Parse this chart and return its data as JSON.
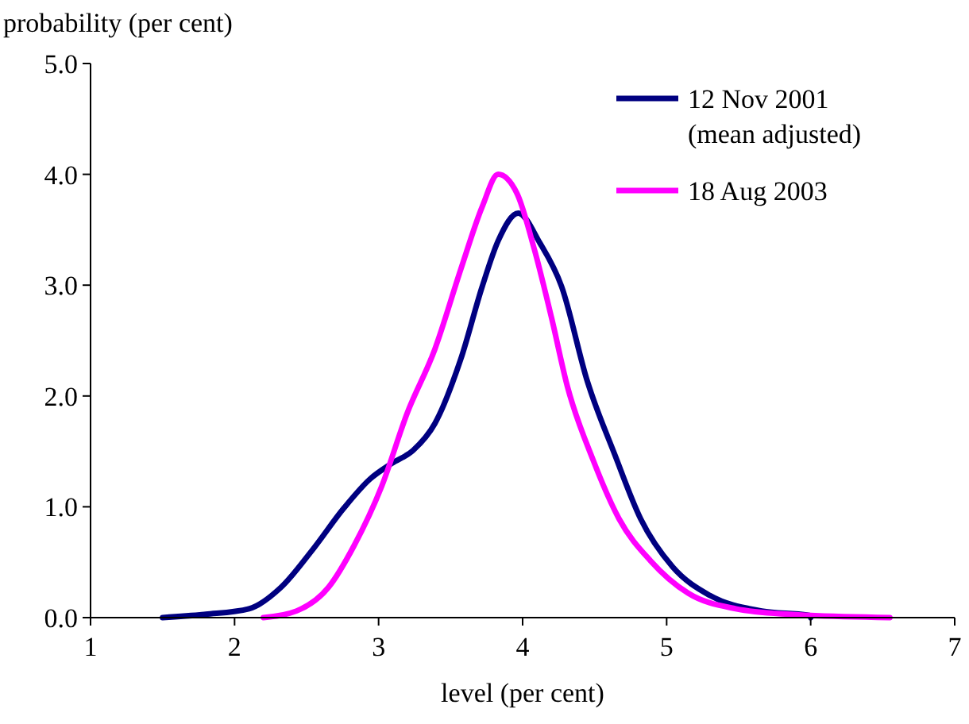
{
  "chart_data": {
    "type": "line",
    "ylabel": "probability (per cent)",
    "xlabel": "level (per cent)",
    "xlim": [
      1,
      7
    ],
    "xticks": [
      1,
      2,
      3,
      4,
      5,
      6,
      7
    ],
    "ylim": [
      0,
      5
    ],
    "yticks": [
      {
        "value": 0,
        "label": "0.0"
      },
      {
        "value": 1,
        "label": "1.0"
      },
      {
        "value": 2,
        "label": "2.0"
      },
      {
        "value": 3,
        "label": "3.0"
      },
      {
        "value": 4,
        "label": "4.0"
      },
      {
        "value": 5,
        "label": "5.0"
      }
    ],
    "grid": false,
    "legend": "top right",
    "marker": "none",
    "line_style": "solid",
    "series": [
      {
        "name": "12 Nov 2001 (mean adjusted)",
        "color": "#000080",
        "x": [
          1.5,
          1.8,
          2.1,
          2.32,
          2.54,
          2.76,
          2.94,
          3.09,
          3.24,
          3.39,
          3.57,
          3.72,
          3.83,
          3.97,
          4.12,
          4.27,
          4.45,
          4.64,
          4.82,
          5.04,
          5.3,
          5.66,
          5.99,
          6.0
        ],
        "values": [
          0,
          0.03,
          0.08,
          0.27,
          0.61,
          0.99,
          1.25,
          1.39,
          1.51,
          1.75,
          2.33,
          2.99,
          3.4,
          3.65,
          3.38,
          2.99,
          2.13,
          1.47,
          0.89,
          0.46,
          0.2,
          0.06,
          0.02,
          0
        ]
      },
      {
        "name": "18 Aug 2003",
        "color": "#ff00ff",
        "x": [
          2.2,
          2.43,
          2.65,
          2.83,
          3.02,
          3.2,
          3.39,
          3.57,
          3.72,
          3.83,
          3.96,
          4.08,
          4.2,
          4.31,
          4.49,
          4.67,
          4.89,
          5.15,
          5.48,
          5.85,
          6.55
        ],
        "values": [
          0,
          0.06,
          0.27,
          0.65,
          1.18,
          1.85,
          2.42,
          3.14,
          3.71,
          4.0,
          3.83,
          3.33,
          2.71,
          2.09,
          1.42,
          0.89,
          0.51,
          0.22,
          0.08,
          0.03,
          0
        ]
      }
    ]
  }
}
